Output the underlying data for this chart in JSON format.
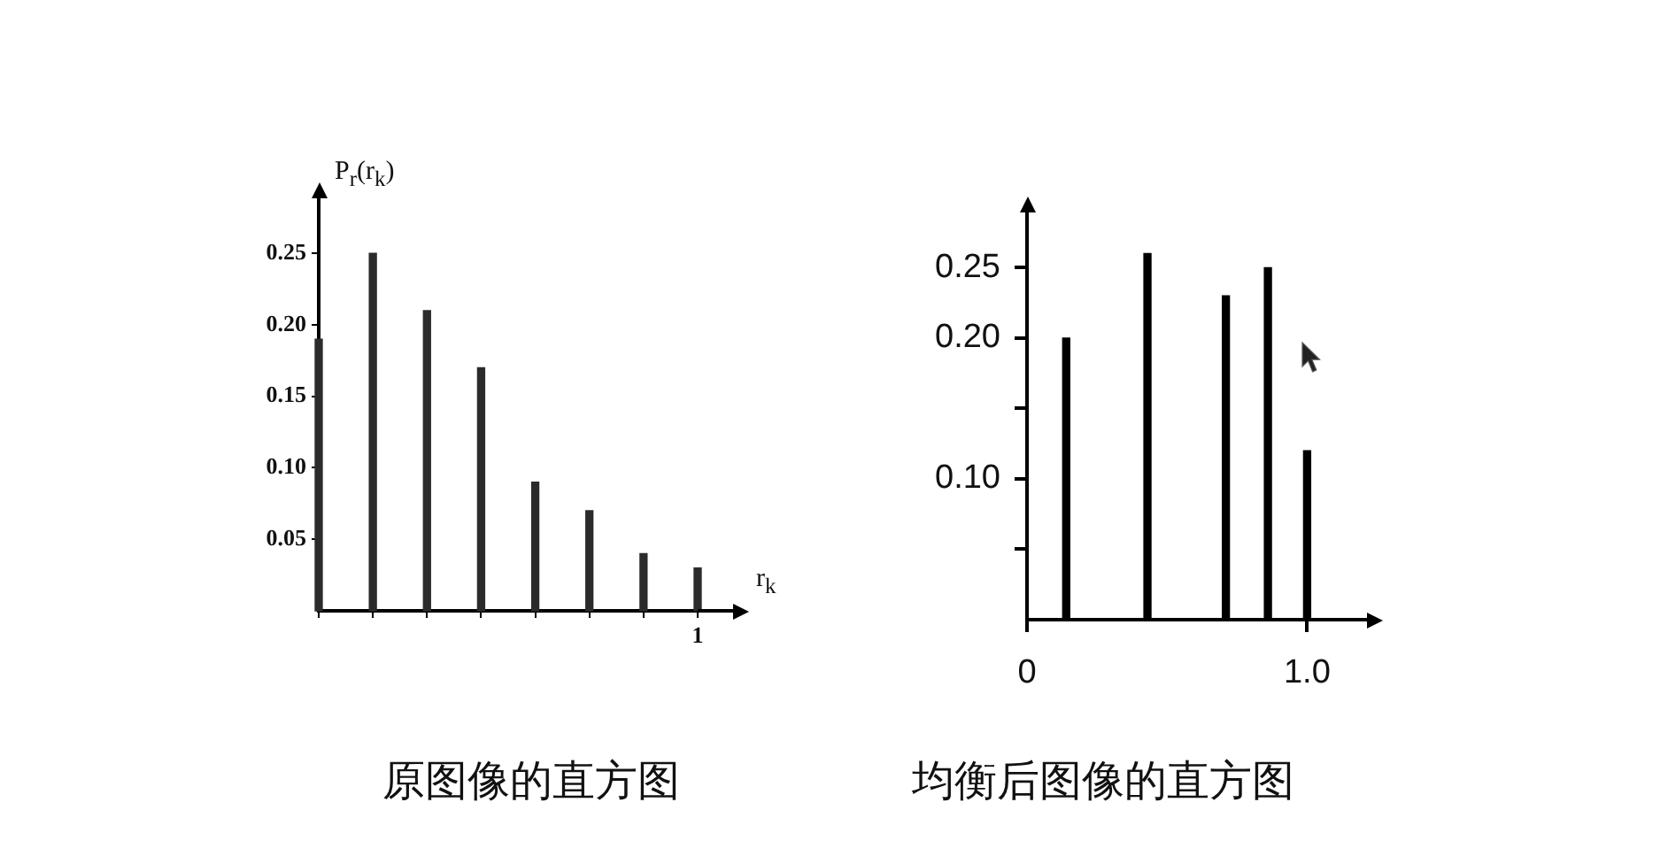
{
  "chart_data": [
    {
      "type": "bar",
      "title": "原图像的直方图",
      "xlabel": "r$_{k}$",
      "ylabel": "P$_{r}$(r$_{k}$)",
      "categories": [
        null,
        null,
        null,
        null,
        null,
        null,
        null,
        "1"
      ],
      "values": [
        0.19,
        0.25,
        0.21,
        0.17,
        0.09,
        0.07,
        0.04,
        0.03
      ],
      "color": "#2b2b2b",
      "ylim": [
        0,
        0.29
      ],
      "yticks": [
        0.05,
        {
          "value": 0.1,
          "label": "0.10"
        },
        0.15,
        {
          "value": 0.2,
          "label": "0.20"
        },
        0.25
      ],
      "grid": false,
      "legend": false
    },
    {
      "type": "bar",
      "title": "均衡后图像的直方图",
      "x": [
        0.14,
        0.43,
        0.71,
        0.86,
        1
      ],
      "values": [
        0.2,
        0.26,
        0.23,
        0.25,
        0.12
      ],
      "color": "#000000",
      "xlim": [
        0,
        1.22
      ],
      "xticks": [
        0,
        {
          "value": 1,
          "label": "1.0"
        }
      ],
      "ylim": [
        0,
        0.29
      ],
      "yticks": [
        {
          "value": 0.05,
          "label": null
        },
        {
          "value": 0.1,
          "label": "0.10"
        },
        {
          "value": 0.15,
          "label": null
        },
        {
          "value": 0.2,
          "label": "0.20"
        },
        0.25
      ],
      "grid": false,
      "legend": false
    }
  ]
}
